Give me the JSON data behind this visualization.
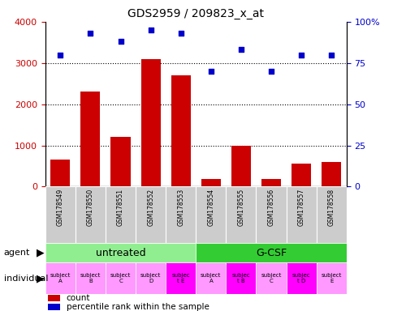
{
  "title": "GDS2959 / 209823_x_at",
  "samples": [
    "GSM178549",
    "GSM178550",
    "GSM178551",
    "GSM178552",
    "GSM178553",
    "GSM178554",
    "GSM178555",
    "GSM178556",
    "GSM178557",
    "GSM178558"
  ],
  "counts": [
    650,
    2300,
    1200,
    3100,
    2700,
    175,
    1000,
    175,
    550,
    600
  ],
  "percentiles": [
    80,
    93,
    88,
    95,
    93,
    70,
    83,
    70,
    80,
    80
  ],
  "ylim_left": [
    0,
    4000
  ],
  "ylim_right": [
    0,
    100
  ],
  "yticks_left": [
    0,
    1000,
    2000,
    3000,
    4000
  ],
  "yticks_right": [
    0,
    25,
    50,
    75,
    100
  ],
  "yticklabels_right": [
    "0",
    "25",
    "50",
    "75",
    "100%"
  ],
  "agent_labels": [
    "untreated",
    "G-CSF"
  ],
  "agent_colors": [
    "#90EE90",
    "#33CC33"
  ],
  "individual_labels": [
    "subject\nA",
    "subject\nB",
    "subject\nC",
    "subject\nD",
    "subjec\nt E",
    "subject\nA",
    "subjec\nt B",
    "subject\nC",
    "subjec\nt D",
    "subject\nE"
  ],
  "individual_highlight": [
    4,
    6,
    8
  ],
  "indiv_color_normal": "#FF99FF",
  "indiv_color_highlight": "#FF00FF",
  "bar_color": "#CC0000",
  "scatter_color": "#0000CC",
  "xticklabel_bg": "#CCCCCC",
  "left_ylabel_color": "#CC0000",
  "right_ylabel_color": "#0000CC",
  "grid_vals": [
    1000,
    2000,
    3000
  ]
}
